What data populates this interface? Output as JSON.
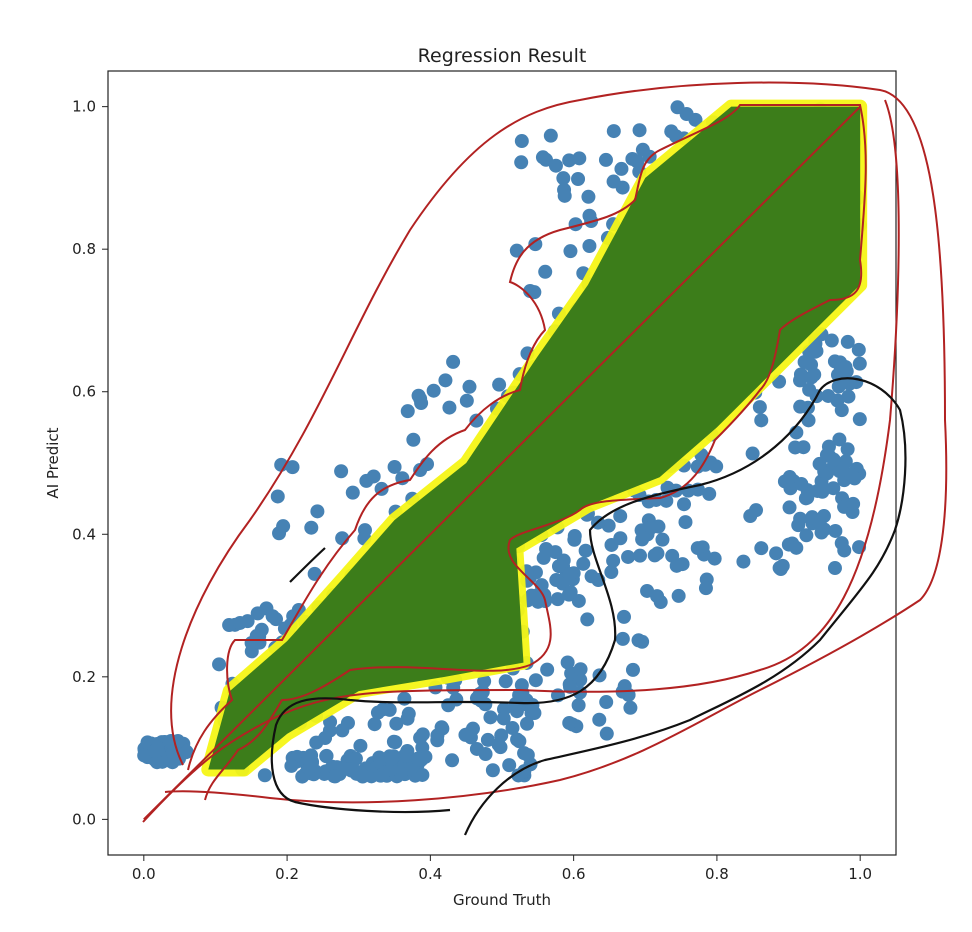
{
  "chart_data": {
    "type": "scatter",
    "title": "Regression Result",
    "xlabel": "Ground Truth",
    "ylabel": "AI Predict",
    "xlim": [
      -0.05,
      1.05
    ],
    "ylim": [
      -0.05,
      1.05
    ],
    "xticks": [
      0.0,
      0.2,
      0.4,
      0.6,
      0.8,
      1.0
    ],
    "yticks": [
      0.0,
      0.2,
      0.4,
      0.6,
      0.8,
      1.0
    ],
    "xtick_labels": [
      "0.0",
      "0.2",
      "0.4",
      "0.6",
      "0.8",
      "1.0"
    ],
    "ytick_labels": [
      "0.0",
      "0.2",
      "0.4",
      "0.6",
      "0.8",
      "1.0"
    ],
    "grid": false,
    "colors": {
      "scatter": "#4682b4",
      "dense_region": "#3c7d1a",
      "highlight": "#f5f516",
      "fit_line": "#b22222",
      "annotation_red": "#b22222",
      "annotation_black": "#111111"
    },
    "scatter_clusters": [
      {
        "x": [
          0.0,
          0.06
        ],
        "y": [
          0.08,
          0.11
        ]
      },
      {
        "x": [
          0.1,
          0.3
        ],
        "y": [
          0.06,
          0.3
        ]
      },
      {
        "x": [
          0.18,
          0.45
        ],
        "y": [
          0.2,
          0.5
        ]
      },
      {
        "x": [
          0.35,
          0.6
        ],
        "y": [
          0.3,
          0.65
        ]
      },
      {
        "x": [
          0.3,
          0.55
        ],
        "y": [
          0.06,
          0.2
        ]
      },
      {
        "x": [
          0.5,
          0.7
        ],
        "y": [
          0.12,
          0.45
        ]
      },
      {
        "x": [
          0.55,
          0.8
        ],
        "y": [
          0.3,
          0.55
        ]
      },
      {
        "x": [
          0.52,
          0.75
        ],
        "y": [
          0.6,
          0.98
        ]
      },
      {
        "x": [
          0.7,
          1.0
        ],
        "y": [
          0.35,
          0.7
        ]
      },
      {
        "x": [
          0.65,
          1.0
        ],
        "y": [
          0.8,
          1.0
        ]
      },
      {
        "x": [
          0.9,
          1.0
        ],
        "y": [
          0.38,
          0.7
        ]
      },
      {
        "x": [
          0.2,
          0.4
        ],
        "y": [
          0.06,
          0.09
        ]
      }
    ],
    "dense_band": [
      [
        0.09,
        0.07
      ],
      [
        0.12,
        0.18
      ],
      [
        0.2,
        0.25
      ],
      [
        0.28,
        0.34
      ],
      [
        0.35,
        0.42
      ],
      [
        0.45,
        0.5
      ],
      [
        0.55,
        0.65
      ],
      [
        0.62,
        0.75
      ],
      [
        0.7,
        0.9
      ],
      [
        0.82,
        1.0
      ],
      [
        1.0,
        1.0
      ],
      [
        1.0,
        0.75
      ],
      [
        0.9,
        0.65
      ],
      [
        0.8,
        0.55
      ],
      [
        0.72,
        0.48
      ],
      [
        0.62,
        0.44
      ],
      [
        0.52,
        0.38
      ],
      [
        0.53,
        0.22
      ],
      [
        0.42,
        0.2
      ],
      [
        0.3,
        0.18
      ],
      [
        0.2,
        0.12
      ],
      [
        0.14,
        0.07
      ]
    ],
    "fit_line": {
      "x": [
        0.0,
        1.0
      ],
      "y": [
        0.0,
        1.0
      ]
    }
  }
}
